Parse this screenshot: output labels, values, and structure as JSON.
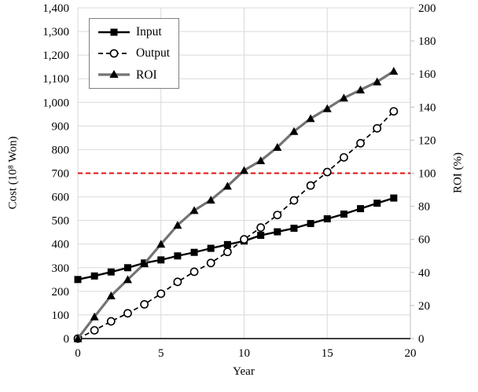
{
  "chart_data": {
    "type": "line",
    "title": "",
    "xlabel": "Year",
    "left_axis": {
      "label": "Cost (10⁸ Won)",
      "min": 0,
      "max": 1400,
      "step": 100,
      "tick_labels": [
        "0",
        "100",
        "200",
        "300",
        "400",
        "500",
        "600",
        "700",
        "800",
        "900",
        "1,000",
        "1,100",
        "1,200",
        "1,300",
        "1,400"
      ]
    },
    "right_axis": {
      "label": "ROI (%)",
      "min": 0,
      "max": 200,
      "step": 20,
      "tick_labels": [
        "0",
        "20",
        "40",
        "60",
        "80",
        "100",
        "120",
        "140",
        "160",
        "180",
        "200"
      ]
    },
    "x_axis": {
      "min": 0,
      "max": 20,
      "tick_values": [
        0,
        5,
        10,
        15,
        20
      ],
      "tick_labels": [
        "0",
        "5",
        "10",
        "15",
        "20"
      ],
      "grid_values": [
        5,
        10,
        15
      ]
    },
    "years": [
      0,
      1,
      2,
      3,
      4,
      5,
      6,
      7,
      8,
      9,
      10,
      11,
      12,
      13,
      14,
      15,
      16,
      17,
      18,
      19
    ],
    "series": [
      {
        "name": "Input",
        "axis": "left",
        "marker": "square",
        "line_style": "solid",
        "color": "#000000",
        "marker_color": "#000000",
        "values": [
          250,
          265,
          282,
          300,
          320,
          333,
          350,
          365,
          382,
          398,
          413,
          437,
          452,
          467,
          487,
          507,
          527,
          550,
          573,
          595
        ]
      },
      {
        "name": "Output",
        "axis": "left",
        "marker": "circle",
        "line_style": "dashed",
        "color": "#000000",
        "marker_color": "#000000",
        "values": [
          0,
          35,
          73,
          107,
          145,
          190,
          240,
          283,
          320,
          367,
          420,
          470,
          523,
          585,
          648,
          705,
          767,
          827,
          890,
          962
        ]
      },
      {
        "name": "ROI",
        "axis": "right",
        "marker": "triangle",
        "line_style": "solid",
        "color": "#737373",
        "marker_color": "#000000",
        "values": [
          0,
          13.2,
          25.9,
          35.7,
          45.3,
          57.1,
          68.6,
          77.5,
          83.8,
          92.2,
          101.7,
          107.6,
          115.7,
          125.3,
          133.1,
          139.1,
          145.5,
          150.4,
          155.3,
          161.7
        ]
      }
    ],
    "reference_line": {
      "axis": "right",
      "value": 100,
      "color": "#e01010",
      "style": "dashed"
    },
    "legend": {
      "position": "top-left",
      "items": [
        "Input",
        "Output",
        "ROI"
      ]
    },
    "grid": true
  },
  "colors": {
    "background": "#ffffff",
    "gridline": "#d9d9d9",
    "primary_axis": "#000000",
    "secondary_axis": "#bfbfbf",
    "reference_red": "#e01010"
  }
}
